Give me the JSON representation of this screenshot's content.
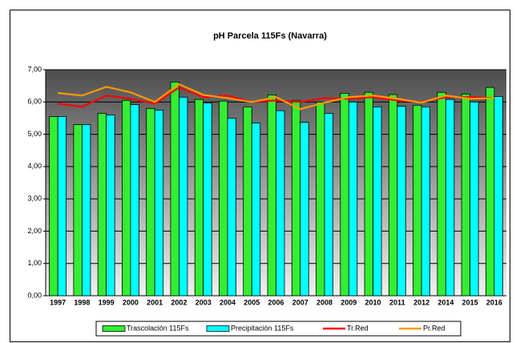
{
  "chart_data": {
    "type": "combo",
    "title": "pH Parcela 115Fs (Navarra)",
    "categories": [
      "1997",
      "1998",
      "1999",
      "2000",
      "2001",
      "2002",
      "2003",
      "2004",
      "2005",
      "2006",
      "2007",
      "2008",
      "2009",
      "2010",
      "2011",
      "2012",
      "2014",
      "2015",
      "2016"
    ],
    "series": [
      {
        "name": "Trascolación  115Fs",
        "type": "bar",
        "color": "#33ee33",
        "values": [
          5.55,
          5.3,
          5.65,
          6.05,
          5.8,
          6.62,
          6.08,
          6.03,
          5.85,
          6.22,
          6.05,
          6.0,
          6.27,
          6.3,
          6.23,
          5.9,
          6.3,
          6.25,
          6.45
        ]
      },
      {
        "name": "Precipitación 115Fs",
        "type": "bar",
        "color": "#00ffff",
        "values": [
          5.55,
          5.3,
          5.6,
          5.92,
          5.75,
          6.15,
          5.97,
          5.5,
          5.35,
          5.73,
          5.37,
          5.65,
          6.0,
          5.85,
          5.87,
          5.85,
          6.08,
          6.0,
          6.17
        ]
      },
      {
        "name": "Tr.Red",
        "type": "line",
        "color": "#ff0000",
        "values": [
          5.95,
          5.85,
          6.2,
          6.1,
          5.95,
          6.45,
          6.15,
          6.2,
          6.0,
          6.05,
          6.0,
          6.12,
          6.1,
          6.15,
          6.05,
          6.0,
          6.15,
          6.15,
          6.12
        ]
      },
      {
        "name": "Pr.Red",
        "type": "line",
        "color": "#ff9900",
        "values": [
          6.28,
          6.2,
          6.47,
          6.3,
          6.0,
          6.55,
          6.22,
          6.12,
          6.0,
          6.15,
          5.78,
          5.98,
          6.15,
          6.2,
          6.1,
          5.98,
          6.2,
          6.1,
          6.12
        ]
      }
    ],
    "ylim": [
      0,
      7
    ],
    "yticks": [
      {
        "value": 0,
        "label": "0,00"
      },
      {
        "value": 1,
        "label": "1,00"
      },
      {
        "value": 2,
        "label": "2,00"
      },
      {
        "value": 3,
        "label": "3,00"
      },
      {
        "value": 4,
        "label": "4,00"
      },
      {
        "value": 5,
        "label": "5,00"
      },
      {
        "value": 6,
        "label": "6,00"
      },
      {
        "value": 7,
        "label": "7,00"
      }
    ],
    "grid": true,
    "legend": "bottom"
  }
}
